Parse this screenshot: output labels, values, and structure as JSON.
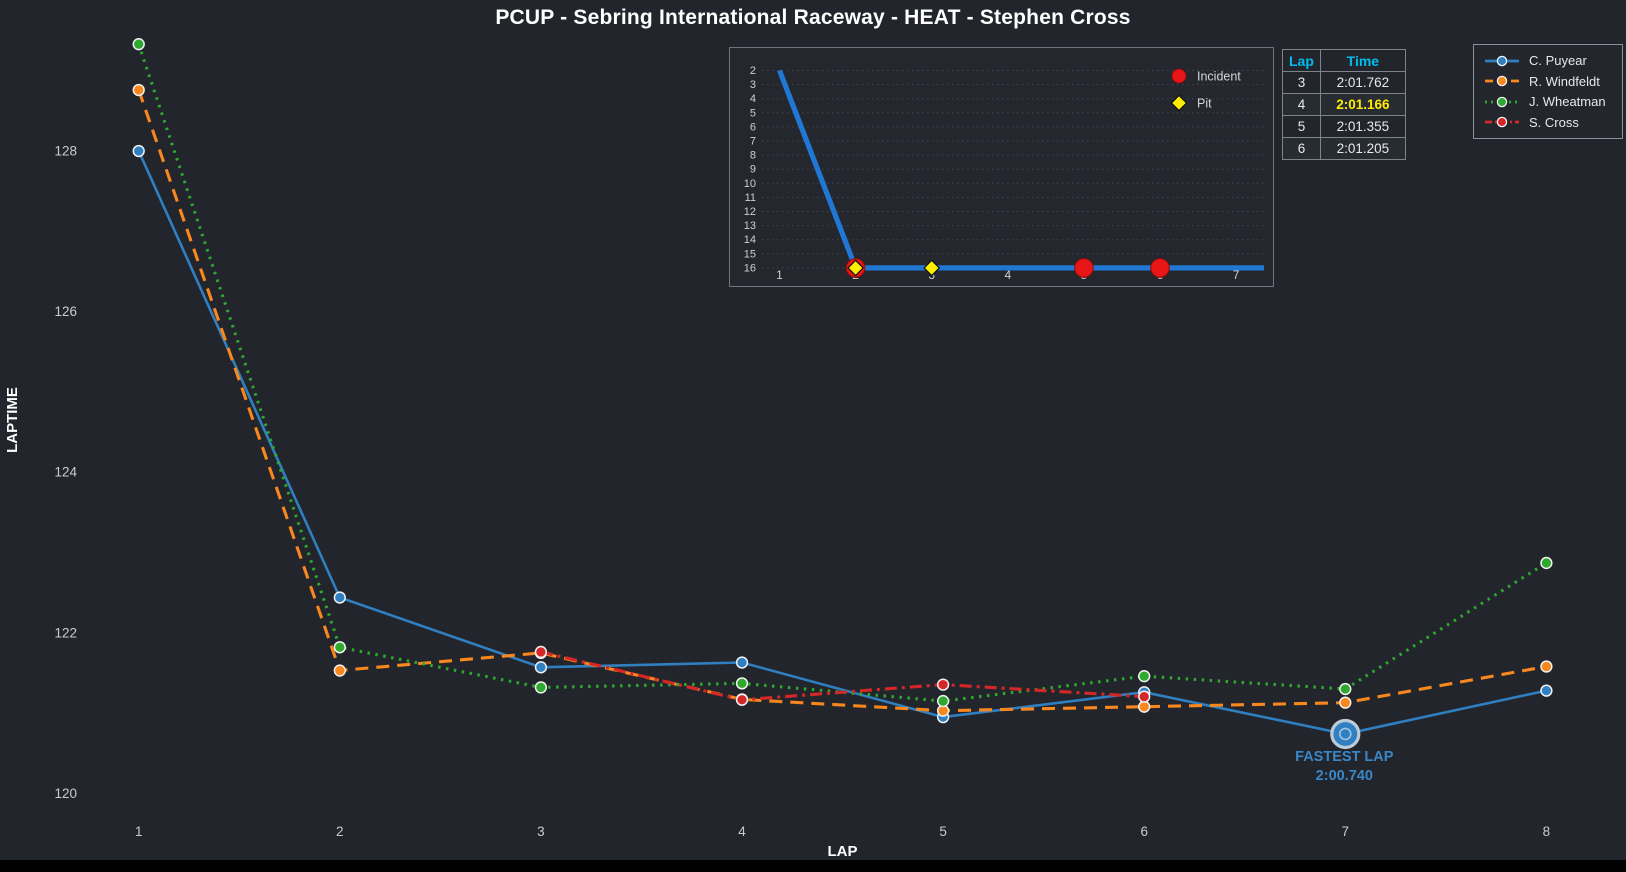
{
  "title": "PCUP - Sebring International Raceway - HEAT - Stephen Cross",
  "colors": {
    "background": "#22252b",
    "inset_background": "#24272e",
    "panel_border": "#6f757d",
    "tick_text": "#c9cdd1",
    "axis_label_text": "#ffffff",
    "table_header_cyan": "#00bfef",
    "highlight_yellow": "#ffee00",
    "fastest_lap_blue": "#3a87c8",
    "incident_red": "#e81616",
    "pit_yellow": "#ffee00",
    "inset_line_blue": "#2178d4",
    "grid_dotted": "#42464e"
  },
  "chart_data": [
    {
      "type": "line",
      "name": "laptime-chart",
      "title": "PCUP - Sebring International Raceway - HEAT - Stephen Cross",
      "xlabel": "LAP",
      "ylabel": "LAPTIME",
      "x": [
        1,
        2,
        3,
        4,
        5,
        6,
        7,
        8
      ],
      "xticks": [
        1,
        2,
        3,
        4,
        5,
        6,
        7,
        8
      ],
      "yticks": [
        120,
        122,
        124,
        126,
        128
      ],
      "ylim": [
        119.4,
        129.6
      ],
      "grid": false,
      "legend_position": "top-right",
      "series": [
        {
          "name": "C. Puyear",
          "color": "#2f7fc1",
          "line_style": "solid",
          "values": [
            128.0,
            122.44,
            121.57,
            121.63,
            120.95,
            121.26,
            120.74,
            121.28
          ]
        },
        {
          "name": "R. Windfeldt",
          "color": "#f8871e",
          "line_style": "dashed",
          "values": [
            128.76,
            121.53,
            121.75,
            121.17,
            121.03,
            121.08,
            121.13,
            121.58
          ]
        },
        {
          "name": "J. Wheatman",
          "color": "#2fa82f",
          "line_style": "dotted",
          "values": [
            129.33,
            121.82,
            121.32,
            121.37,
            121.15,
            121.46,
            121.3,
            122.87
          ]
        },
        {
          "name": "S. Cross",
          "color": "#d62728",
          "line_style": "dashdot",
          "values": [
            null,
            null,
            121.762,
            121.166,
            121.355,
            121.205,
            null,
            null
          ]
        }
      ],
      "annotation": {
        "label": "FASTEST LAP",
        "value": "2:00.740",
        "series": "C. Puyear",
        "lap": 7,
        "y": 120.74
      }
    },
    {
      "type": "line",
      "name": "position-by-lap-inset",
      "x": [
        1,
        2,
        3,
        4,
        5,
        6,
        7
      ],
      "positions": [
        2,
        16,
        16,
        16,
        16,
        16,
        16
      ],
      "xticks": [
        1,
        2,
        3,
        4,
        5,
        6,
        7
      ],
      "yticks": [
        2,
        3,
        4,
        5,
        6,
        7,
        8,
        9,
        10,
        11,
        12,
        13,
        14,
        15,
        16
      ],
      "y_inverted": true,
      "grid": "horizontal-dotted",
      "line_color": "#2178d4",
      "incident_laps": [
        2,
        5,
        6
      ],
      "pit_laps": [
        2,
        3
      ],
      "line_extends_right": true,
      "legend": [
        {
          "label": "Incident",
          "marker": "circle",
          "color": "#e81616"
        },
        {
          "label": "Pit",
          "marker": "diamond",
          "color": "#ffee00"
        }
      ]
    }
  ],
  "lap_table": {
    "headers": [
      "Lap",
      "Time"
    ],
    "rows": [
      {
        "lap": "3",
        "time": "2:01.762",
        "highlight": false
      },
      {
        "lap": "4",
        "time": "2:01.166",
        "highlight": true
      },
      {
        "lap": "5",
        "time": "2:01.355",
        "highlight": false
      },
      {
        "lap": "6",
        "time": "2:01.205",
        "highlight": false
      }
    ]
  },
  "legend": {
    "items": [
      {
        "label": "C. Puyear",
        "color": "#2f7fc1",
        "line_style": "solid"
      },
      {
        "label": "R. Windfeldt",
        "color": "#f8871e",
        "line_style": "dashed"
      },
      {
        "label": "J. Wheatman",
        "color": "#2fa82f",
        "line_style": "dotted"
      },
      {
        "label": "S. Cross",
        "color": "#d62728",
        "line_style": "dashdot"
      }
    ]
  }
}
